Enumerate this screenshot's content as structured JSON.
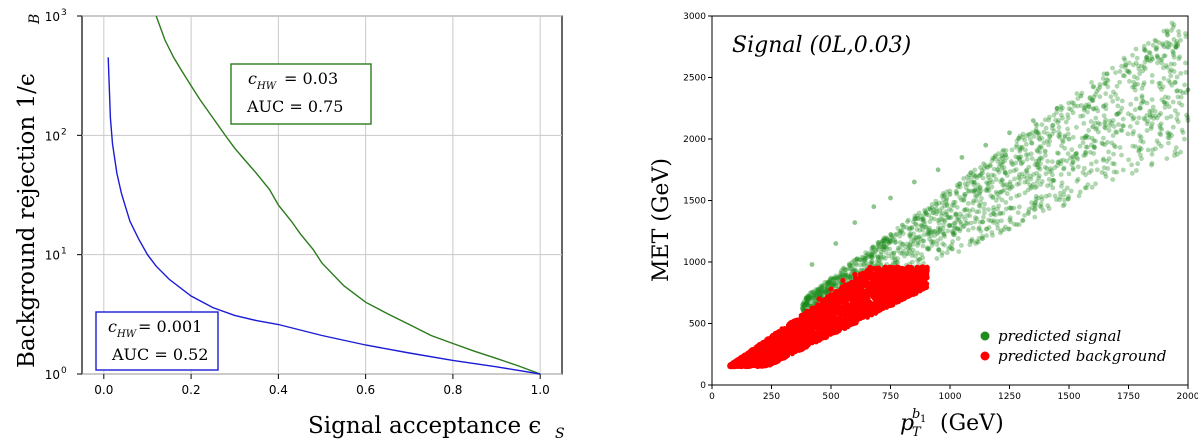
{
  "chart_data": [
    {
      "type": "line",
      "xlabel": "Signal acceptance ϵ",
      "xlabel_sub": "S",
      "ylabel": "Background rejection 1/ϵ",
      "ylabel_sub": "B",
      "xlim": [
        -0.05,
        1.05
      ],
      "ylim": [
        1,
        1000
      ],
      "yscale": "log",
      "grid": true,
      "xticks": [
        0.0,
        0.2,
        0.4,
        0.6,
        0.8,
        1.0
      ],
      "xtick_labels": [
        "0.0",
        "0.2",
        "0.4",
        "0.6",
        "0.8",
        "1.0"
      ],
      "ytick_labels": [
        "10",
        "10",
        "10",
        "10"
      ],
      "ytick_exponents": [
        "0",
        "1",
        "2",
        "3"
      ],
      "yticks": [
        1,
        10,
        100,
        1000
      ],
      "series": [
        {
          "color": "#2a7a1c",
          "x": [
            0.12,
            0.14,
            0.16,
            0.18,
            0.2,
            0.22,
            0.25,
            0.28,
            0.3,
            0.32,
            0.35,
            0.38,
            0.4,
            0.43,
            0.45,
            0.48,
            0.5,
            0.55,
            0.6,
            0.65,
            0.7,
            0.75,
            0.8,
            0.85,
            0.9,
            0.95,
            1.0
          ],
          "y": [
            1000,
            630,
            450,
            340,
            260,
            200,
            140,
            98,
            78,
            64,
            48,
            35,
            26,
            19,
            15,
            11,
            8.5,
            5.5,
            4.0,
            3.2,
            2.6,
            2.1,
            1.8,
            1.55,
            1.35,
            1.17,
            1.0
          ]
        },
        {
          "color": "#1b1bd6",
          "x": [
            0.01,
            0.015,
            0.02,
            0.03,
            0.04,
            0.05,
            0.06,
            0.08,
            0.1,
            0.12,
            0.15,
            0.2,
            0.25,
            0.3,
            0.35,
            0.4,
            0.5,
            0.6,
            0.7,
            0.8,
            0.9,
            1.0
          ],
          "y": [
            450,
            140,
            85,
            48,
            33,
            25,
            19,
            13.5,
            10,
            8.0,
            6.2,
            4.5,
            3.6,
            3.1,
            2.8,
            2.6,
            2.1,
            1.75,
            1.5,
            1.3,
            1.15,
            1.0
          ]
        }
      ],
      "annotations": [
        {
          "line1_var": "c",
          "line1_sub": "HW",
          "line1_value": " = 0.03",
          "line2": "AUC = 0.75",
          "color": "#2a7a1c"
        },
        {
          "line1_var": "c",
          "line1_sub": "HW",
          "line1_value": " = 0.001",
          "line2": "AUC = 0.52",
          "color": "#1b1bd6"
        }
      ]
    },
    {
      "type": "scatter",
      "title": "Signal (0L,0.03)",
      "xlabel_var": "p",
      "xlabel_sub": "T",
      "xlabel_sup": "b",
      "xlabel_sup_sub": "1",
      "xlabel_unit": "(GeV)",
      "ylabel": "MET (GeV)",
      "xlim": [
        0,
        2000
      ],
      "ylim": [
        0,
        3000
      ],
      "xticks": [
        0,
        250,
        500,
        750,
        1000,
        1250,
        1500,
        1750,
        2000
      ],
      "xtick_labels": [
        "0",
        "250",
        "500",
        "750",
        "1000",
        "1250",
        "1500",
        "1750",
        "2000"
      ],
      "yticks": [
        0,
        500,
        1000,
        1500,
        2000,
        2500,
        3000
      ],
      "ytick_labels": [
        "0",
        "500",
        "1000",
        "1500",
        "2000",
        "2500",
        "3000"
      ],
      "legend_position": "bottom-right",
      "series": [
        {
          "name": "predicted signal",
          "color": "#1e8c1e",
          "region": "wedge between MET ≈ 0.85·pT + 200 and MET ≈ 1.45·pT + 150, for pT ≈ 380–2000 GeV, density falling with pT",
          "points": [
            [
              420,
              980
            ],
            [
              520,
              1150
            ],
            [
              600,
              1320
            ],
            [
              680,
              1450
            ],
            [
              750,
              1520
            ],
            [
              800,
              1300
            ],
            [
              850,
              1650
            ],
            [
              900,
              1400
            ],
            [
              950,
              1750
            ],
            [
              1000,
              1550
            ],
            [
              1050,
              1850
            ],
            [
              1100,
              1650
            ],
            [
              1150,
              1950
            ],
            [
              1200,
              1750
            ],
            [
              1250,
              2050
            ],
            [
              1300,
              1800
            ],
            [
              1350,
              2150
            ],
            [
              1400,
              1900
            ],
            [
              1450,
              2250
            ],
            [
              1500,
              2000
            ],
            [
              1550,
              2350
            ],
            [
              1600,
              2100
            ],
            [
              1650,
              2450
            ],
            [
              1700,
              2200
            ],
            [
              1750,
              2550
            ],
            [
              1800,
              2250
            ],
            [
              1850,
              2650
            ],
            [
              1900,
              2300
            ],
            [
              1950,
              2750
            ],
            [
              2000,
              2400
            ]
          ]
        },
        {
          "name": "predicted background",
          "color": "#ff0000",
          "region": "dense wedge from pT ≈ 75 GeV (MET ≈ 150) up to pT ≈ 900 GeV (MET ≈ 900)",
          "points": [
            [
              80,
              150
            ],
            [
              150,
              160
            ],
            [
              200,
              250
            ],
            [
              250,
              300
            ],
            [
              300,
              420
            ],
            [
              350,
              520
            ],
            [
              400,
              600
            ],
            [
              450,
              700
            ],
            [
              500,
              780
            ],
            [
              550,
              850
            ],
            [
              600,
              900
            ],
            [
              650,
              920
            ],
            [
              700,
              880
            ],
            [
              750,
              900
            ],
            [
              800,
              890
            ],
            [
              850,
              900
            ],
            [
              900,
              880
            ]
          ]
        }
      ]
    }
  ]
}
